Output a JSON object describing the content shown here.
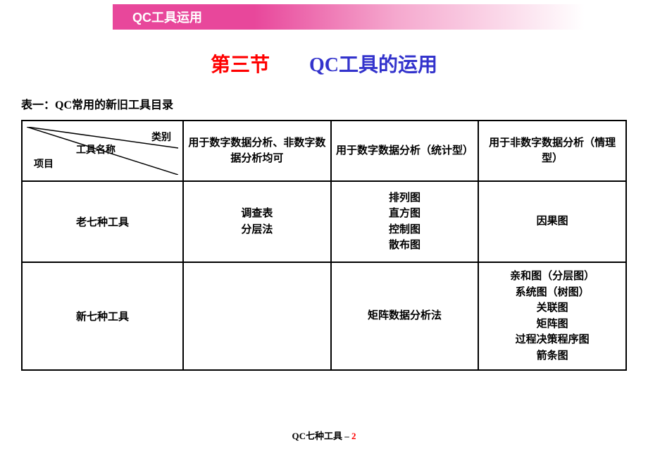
{
  "banner": {
    "text": "QC工具运用"
  },
  "section_title": {
    "part1": "第三节",
    "spacer": "　　",
    "part2": "QC工具的运用"
  },
  "table_caption": "表一：QC常用的新旧工具目录",
  "table": {
    "header_diag": {
      "category": "类别",
      "tool_name": "工具名称",
      "project": "项目"
    },
    "columns": [
      "用于数字数据分析、非数字数据分析均可",
      "用于数字数据分析（统计型）",
      "用于非数字数据分析（情理型）"
    ],
    "rows": [
      {
        "label": "老七种工具",
        "cells": [
          [
            "调查表",
            "分层法"
          ],
          [
            "排列图",
            "直方图",
            "控制图",
            "散布图"
          ],
          [
            "因果图"
          ]
        ]
      },
      {
        "label": "新七种工具",
        "cells": [
          [],
          [
            "矩阵数据分析法"
          ],
          [
            "亲和图（分层图）",
            "系统图（树图）",
            "关联图",
            "矩阵图",
            "过程决策程序图",
            "箭条图"
          ]
        ]
      }
    ]
  },
  "footer": {
    "prefix": "QC七种工具 – ",
    "page_number": "2"
  },
  "colors": {
    "banner_start": "#e8479b",
    "banner_text": "#ffffff",
    "title_red": "#ff0000",
    "title_blue": "#3333cc",
    "text_black": "#000000",
    "border": "#000000",
    "background": "#ffffff"
  }
}
